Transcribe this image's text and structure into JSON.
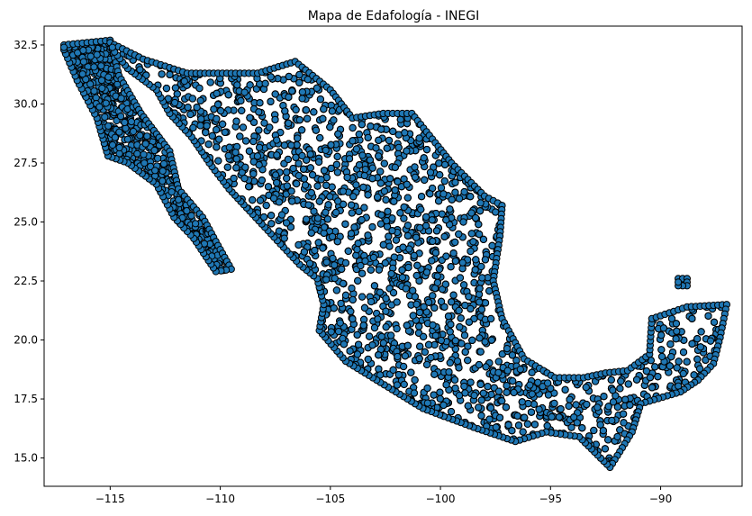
{
  "chart_data": {
    "type": "scatter",
    "title": "Mapa de Edafología - INEGI",
    "xlabel": "",
    "ylabel": "",
    "xlim": [
      -118.0,
      -86.3
    ],
    "ylim": [
      13.8,
      33.3
    ],
    "xticks": [
      -115,
      -110,
      -105,
      -100,
      -95,
      -90
    ],
    "xtick_labels": [
      "−115",
      "−110",
      "−105",
      "−100",
      "−95",
      "−90"
    ],
    "yticks": [
      15.0,
      17.5,
      20.0,
      22.5,
      25.0,
      27.5,
      30.0,
      32.5
    ],
    "ytick_labels": [
      "15.0",
      "17.5",
      "20.0",
      "22.5",
      "25.0",
      "27.5",
      "30.0",
      "32.5"
    ],
    "grid": false,
    "legend": "none",
    "marker": {
      "shape": "circle",
      "face_color": "#1f77b4",
      "edge_color": "#000000"
    },
    "series": [
      {
        "points_note": "dense sampled soil-point locations across Mexico; approximated by region polygons with sample density",
        "regions": [
          {
            "name": "",
            "outline": [
              [
                -117.1,
                32.5
              ],
              [
                -115.0,
                32.7
              ],
              [
                -114.6,
                31.2
              ],
              [
                -113.6,
                29.6
              ],
              [
                -112.3,
                28.0
              ],
              [
                -111.9,
                26.4
              ],
              [
                -110.8,
                25.2
              ],
              [
                -110.1,
                24.0
              ],
              [
                -109.5,
                23.0
              ],
              [
                -110.2,
                22.9
              ],
              [
                -111.2,
                24.3
              ],
              [
                -112.1,
                25.2
              ],
              [
                -112.9,
                26.6
              ],
              [
                -114.2,
                27.5
              ],
              [
                -115.1,
                27.8
              ],
              [
                -115.6,
                29.4
              ],
              [
                -116.5,
                31.0
              ],
              [
                -117.1,
                32.3
              ]
            ],
            "count": 700
          },
          {
            "name": "",
            "outline": [
              [
                -115.0,
                32.6
              ],
              [
                -113.5,
                31.9
              ],
              [
                -111.5,
                31.3
              ],
              [
                -108.3,
                31.3
              ],
              [
                -106.6,
                31.8
              ],
              [
                -105.0,
                30.6
              ],
              [
                -104.0,
                29.4
              ],
              [
                -102.6,
                29.6
              ],
              [
                -101.3,
                29.6
              ],
              [
                -100.1,
                28.2
              ],
              [
                -99.5,
                27.5
              ],
              [
                -98.0,
                26.1
              ],
              [
                -97.2,
                25.7
              ],
              [
                -97.3,
                24.4
              ],
              [
                -97.6,
                22.5
              ],
              [
                -97.2,
                20.9
              ],
              [
                -96.2,
                19.2
              ],
              [
                -94.8,
                18.4
              ],
              [
                -93.5,
                18.4
              ],
              [
                -92.5,
                18.6
              ],
              [
                -91.5,
                18.7
              ],
              [
                -90.5,
                19.4
              ],
              [
                -90.4,
                20.9
              ],
              [
                -88.8,
                21.4
              ],
              [
                -87.0,
                21.5
              ],
              [
                -87.3,
                20.1
              ],
              [
                -87.6,
                19.0
              ],
              [
                -88.3,
                18.3
              ],
              [
                -89.1,
                17.8
              ],
              [
                -90.9,
                17.3
              ],
              [
                -91.3,
                16.1
              ],
              [
                -92.3,
                14.6
              ],
              [
                -93.7,
                15.9
              ],
              [
                -95.2,
                16.1
              ],
              [
                -96.6,
                15.7
              ],
              [
                -98.5,
                16.3
              ],
              [
                -100.8,
                17.1
              ],
              [
                -102.2,
                17.9
              ],
              [
                -104.3,
                19.1
              ],
              [
                -105.5,
                20.4
              ],
              [
                -105.3,
                21.5
              ],
              [
                -105.6,
                22.6
              ],
              [
                -106.4,
                23.2
              ],
              [
                -107.7,
                24.5
              ],
              [
                -108.8,
                25.6
              ],
              [
                -109.6,
                26.4
              ],
              [
                -110.5,
                27.5
              ],
              [
                -111.3,
                28.6
              ],
              [
                -112.3,
                29.6
              ],
              [
                -112.9,
                30.6
              ],
              [
                -114.2,
                31.5
              ],
              [
                -114.8,
                32.2
              ]
            ],
            "count": 6000
          },
          {
            "name": "",
            "outline": [
              [
                -89.2,
                22.6
              ],
              [
                -88.8,
                22.6
              ],
              [
                -88.8,
                22.3
              ],
              [
                -89.2,
                22.3
              ]
            ],
            "count": 10
          }
        ]
      }
    ]
  }
}
